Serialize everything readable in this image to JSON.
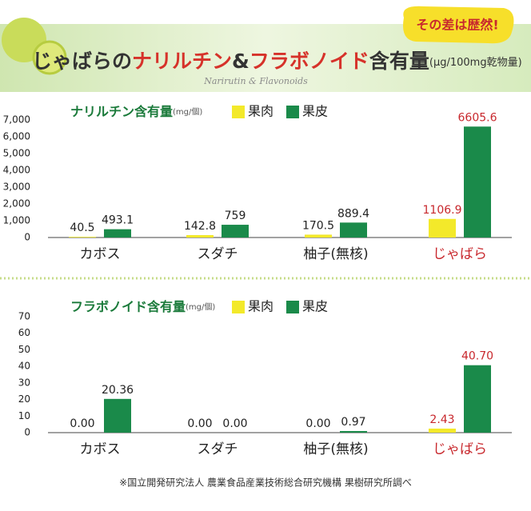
{
  "header": {
    "title_parts": [
      "じゃばらの",
      "ナリルチン",
      "&",
      "フラボノイド",
      "含有量"
    ],
    "unit": "(μg/100mg乾物量)",
    "subtitle": "Narirutin & Flavonoids",
    "badge": "その差は歴然!"
  },
  "chart_data": [
    {
      "type": "bar",
      "title": "ナリルチン含有量",
      "unit": "(mg/個)",
      "categories": [
        "カボス",
        "スダチ",
        "柚子(無核)",
        "じゃばら"
      ],
      "category_colors": [
        "#222222",
        "#222222",
        "#222222",
        "#c8282d"
      ],
      "series": [
        {
          "name": "果肉",
          "color": "#f3e92a",
          "values": [
            40.5,
            142.8,
            170.5,
            1106.9
          ]
        },
        {
          "name": "果皮",
          "color": "#1a8a4a",
          "values": [
            493.1,
            759,
            889.4,
            6605.6
          ]
        }
      ],
      "ylim": [
        0,
        7000
      ],
      "yticks": [
        0,
        {
          "value": 1000,
          "label": "1,000"
        },
        {
          "value": 2000,
          "label": "2,000"
        },
        {
          "value": 3000,
          "label": "3,000"
        },
        {
          "value": 4000,
          "label": "4,000"
        },
        {
          "value": 5000,
          "label": "5,000"
        },
        {
          "value": 6000,
          "label": "6,000"
        },
        {
          "value": 7000,
          "label": "7,000"
        }
      ]
    },
    {
      "type": "bar",
      "title": "フラボノイド含有量",
      "unit": "(mg/個)",
      "categories": [
        "カボス",
        "スダチ",
        "柚子(無核)",
        "じゃばら"
      ],
      "category_colors": [
        "#222222",
        "#222222",
        "#222222",
        "#c8282d"
      ],
      "series": [
        {
          "name": "果肉",
          "color": "#f3e92a",
          "values": [
            0,
            0,
            0,
            2.43
          ],
          "value_labels": [
            "0.00",
            "0.00",
            "0.00",
            "2.43"
          ]
        },
        {
          "name": "果皮",
          "color": "#1a8a4a",
          "values": [
            20.36,
            0,
            0.97,
            40.7
          ],
          "value_labels": [
            "20.36",
            "0.00",
            "0.97",
            "40.70"
          ]
        }
      ],
      "ylim": [
        0,
        70
      ],
      "yticks": [
        0,
        10,
        20,
        30,
        40,
        50,
        60,
        70
      ]
    }
  ],
  "footnote": "※国立開発研究法人 農業食品産業技術総合研究機構 果樹研究所調べ"
}
